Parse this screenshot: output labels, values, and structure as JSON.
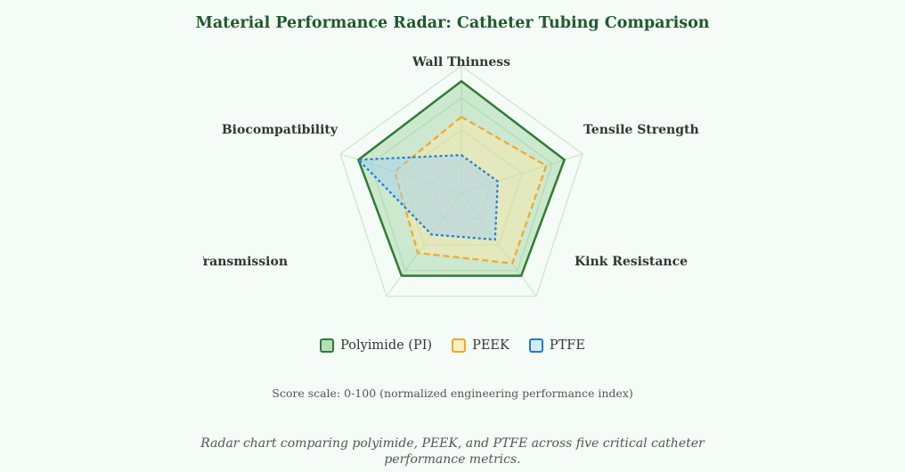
{
  "chart_data": {
    "type": "radar",
    "title": "Material Performance Radar: Catheter Tubing Comparison",
    "axes": [
      "Wall Thinness",
      "Tensile Strength",
      "Kink Resistance",
      "Transmission",
      "Biocompatibility"
    ],
    "range": [
      0,
      100
    ],
    "grid_levels": [
      25,
      50,
      75,
      100
    ],
    "series": [
      {
        "name": "Polyimide (PI)",
        "values": [
          88,
          85,
          80,
          80,
          85
        ],
        "stroke": "#2e7d32",
        "fill": "#81c784",
        "dash": "solid"
      },
      {
        "name": "PEEK",
        "values": [
          60,
          70,
          68,
          58,
          55
        ],
        "stroke": "#f5a623",
        "fill": "#ffe9a8",
        "dash": "dashed"
      },
      {
        "name": "PTFE",
        "values": [
          30,
          30,
          45,
          40,
          85
        ],
        "stroke": "#1e7bd6",
        "fill": "#9fd0f5",
        "dash": "dotted"
      }
    ],
    "legend_position": "bottom-center",
    "scale_note": "Score scale: 0-100 (normalized engineering performance index)",
    "caption": "Radar chart comparing polyimide, PEEK, and PTFE across five critical catheter performance metrics."
  }
}
